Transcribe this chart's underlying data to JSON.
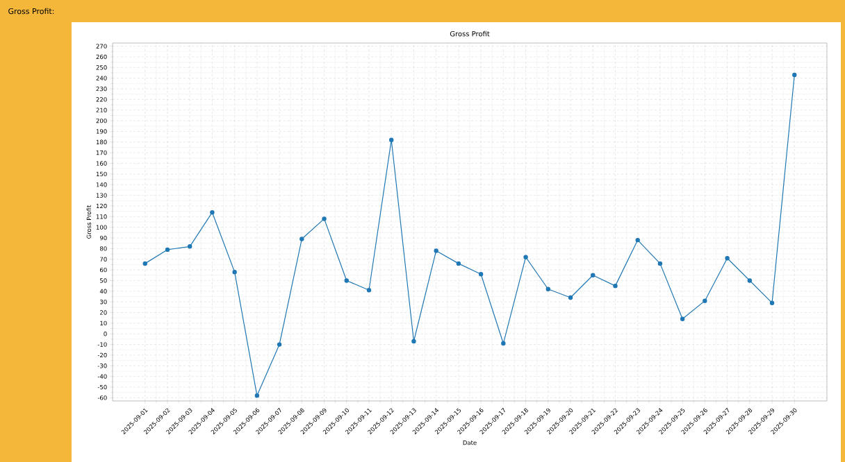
{
  "chart_data": {
    "type": "line",
    "title": "Gross Profit",
    "xlabel": "Date",
    "ylabel": "Gross Profit",
    "annotations": [
      "Gross Profit:"
    ],
    "categories": [
      "2025-09-01",
      "2025-09-02",
      "2025-09-03",
      "2025-09-04",
      "2025-09-05",
      "2025-09-06",
      "2025-09-07",
      "2025-09-08",
      "2025-09-09",
      "2025-09-10",
      "2025-09-11",
      "2025-09-12",
      "2025-09-13",
      "2025-09-14",
      "2025-09-15",
      "2025-09-16",
      "2025-09-17",
      "2025-09-18",
      "2025-09-19",
      "2025-09-20",
      "2025-09-21",
      "2025-09-22",
      "2025-09-23",
      "2025-09-24",
      "2025-09-25",
      "2025-09-26",
      "2025-09-27",
      "2025-09-28",
      "2025-09-29",
      "2025-09-30"
    ],
    "series": [
      {
        "color": "#1f77b4",
        "values": [
          66,
          79,
          82,
          114,
          58,
          -58,
          -10,
          89,
          108,
          50,
          41,
          182,
          -7,
          78,
          66,
          56,
          -9,
          72,
          42,
          34,
          55,
          45,
          88,
          66,
          14,
          31,
          71,
          50,
          29,
          243
        ]
      }
    ],
    "ylim": [
      -63,
      273
    ],
    "yticks": [
      -60,
      -50,
      -40,
      -30,
      -20,
      -10,
      0,
      10,
      20,
      30,
      40,
      50,
      60,
      70,
      80,
      90,
      100,
      110,
      120,
      130,
      140,
      150,
      160,
      170,
      180,
      190,
      200,
      210,
      220,
      230,
      240,
      250,
      260,
      270
    ],
    "grid": true,
    "marker": "circle",
    "line_style": "solid"
  }
}
